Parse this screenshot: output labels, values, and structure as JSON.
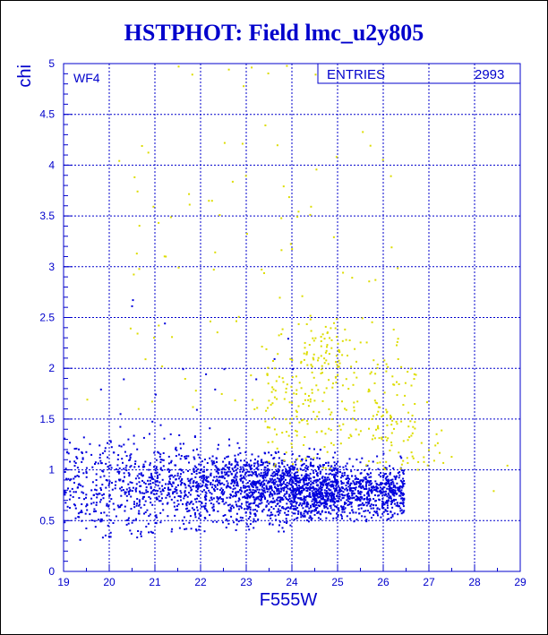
{
  "chart_data": {
    "type": "scatter",
    "title": "HSTPHOT: Field lmc_u2y805",
    "xlabel": "F555W",
    "ylabel": "chi",
    "xlim": [
      19,
      29
    ],
    "ylim": [
      0,
      5
    ],
    "x_ticks": [
      "19",
      "20",
      "21",
      "22",
      "23",
      "24",
      "25",
      "26",
      "27",
      "28",
      "29"
    ],
    "y_ticks": [
      "0",
      "0.5",
      "1",
      "1.5",
      "2",
      "2.5",
      "3",
      "3.5",
      "4",
      "4.5",
      "5"
    ],
    "grid": true,
    "panel_label": "WF4",
    "stats_box": {
      "label": "ENTRIES",
      "value": "2993"
    },
    "series": [
      {
        "color": "#0000dd",
        "density": [
          {
            "x": [
              19.0,
              20.0
            ],
            "y": [
              0.3,
              1.5
            ],
            "n": 170,
            "center_y": 0.85,
            "spread": 0.22
          },
          {
            "x": [
              20.0,
              21.0
            ],
            "y": [
              0.3,
              1.6
            ],
            "n": 210,
            "center_y": 0.85,
            "spread": 0.22
          },
          {
            "x": [
              21.0,
              22.0
            ],
            "y": [
              0.4,
              1.7
            ],
            "n": 280,
            "center_y": 0.85,
            "spread": 0.2
          },
          {
            "x": [
              22.0,
              23.0
            ],
            "y": [
              0.4,
              1.7
            ],
            "n": 360,
            "center_y": 0.85,
            "spread": 0.18
          },
          {
            "x": [
              23.0,
              24.0
            ],
            "y": [
              0.4,
              1.7
            ],
            "n": 520,
            "center_y": 0.82,
            "spread": 0.16
          },
          {
            "x": [
              24.0,
              25.0
            ],
            "y": [
              0.5,
              1.8
            ],
            "n": 640,
            "center_y": 0.8,
            "spread": 0.15
          },
          {
            "x": [
              25.0,
              26.45
            ],
            "y": [
              0.5,
              1.6
            ],
            "n": 560,
            "center_y": 0.8,
            "spread": 0.13
          }
        ],
        "outliers": [
          [
            20.5,
            2.68
          ],
          [
            20.48,
            2.62
          ],
          [
            21.2,
            2.45
          ],
          [
            21.6,
            2.0
          ],
          [
            21.9,
            1.6
          ],
          [
            22.1,
            1.95
          ],
          [
            22.3,
            1.8
          ],
          [
            23.2,
            1.9
          ],
          [
            23.6,
            2.1
          ],
          [
            24.0,
            2.0
          ],
          [
            19.8,
            1.8
          ],
          [
            20.3,
            1.9
          ],
          [
            21.0,
            1.75
          ],
          [
            22.5,
            2.0
          ],
          [
            23.9,
            2.3
          ]
        ]
      },
      {
        "color": "#dddd00",
        "density": [
          {
            "x": [
              23.4,
              26.7
            ],
            "y": [
              1.0,
              2.6
            ],
            "n": 260,
            "center_y": 1.65,
            "spread": 0.35
          },
          {
            "x": [
              24.3,
              25.2
            ],
            "y": [
              2.0,
              2.5
            ],
            "n": 40,
            "center_y": 2.2,
            "spread": 0.2
          },
          {
            "x": [
              25.8,
              27.5
            ],
            "y": [
              1.0,
              1.7
            ],
            "n": 40,
            "center_y": 1.3,
            "spread": 0.2
          },
          {
            "x": [
              20.5,
              26.3
            ],
            "y": [
              1.6,
              5.0
            ],
            "n": 90,
            "center_y": 2.8,
            "spread": 1.0
          }
        ],
        "outliers": [
          [
            21.5,
            4.98
          ],
          [
            21.8,
            4.9
          ],
          [
            22.6,
            4.95
          ],
          [
            23.1,
            4.97
          ],
          [
            24.5,
            4.9
          ],
          [
            24.1,
            3.5
          ],
          [
            25.7,
            4.2
          ],
          [
            26.15,
            3.9
          ],
          [
            20.2,
            4.05
          ],
          [
            20.6,
            3.75
          ],
          [
            20.95,
            3.6
          ],
          [
            21.5,
            3.0
          ],
          [
            22.9,
            4.22
          ],
          [
            23.4,
            4.4
          ],
          [
            24.4,
            3.6
          ],
          [
            19.5,
            1.7
          ],
          [
            28.4,
            0.8
          ],
          [
            28.7,
            1.05
          ],
          [
            20.6,
            2.35
          ],
          [
            20.45,
            2.4
          ],
          [
            24.9,
            3.3
          ],
          [
            25.3,
            2.9
          ],
          [
            23.8,
            3.8
          ],
          [
            22.3,
            3.15
          ],
          [
            25.1,
            2.95
          ]
        ]
      }
    ]
  }
}
